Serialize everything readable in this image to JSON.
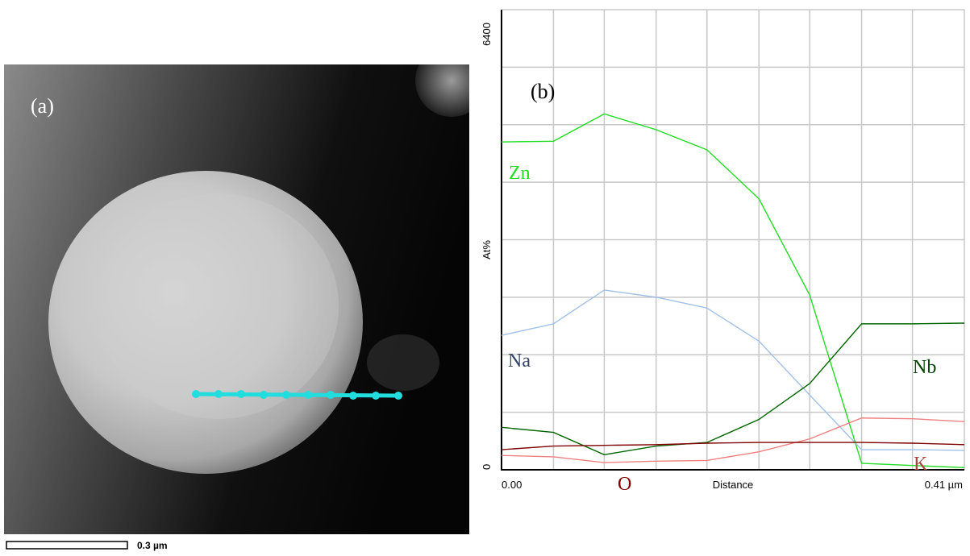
{
  "panel_a": {
    "label": "(a)",
    "scale_bar": "0.3 µm"
  },
  "chart_data": {
    "type": "line",
    "label": "(b)",
    "ylabel": "At%",
    "xlabel": "Distance",
    "x": [
      0,
      0.046,
      0.091,
      0.137,
      0.182,
      0.228,
      0.273,
      0.319,
      0.364,
      0.41
    ],
    "xlim": [
      0,
      0.41
    ],
    "xticks": [
      {
        "value": 0,
        "label": "0.00"
      },
      {
        "value": 0.046,
        "label": null
      },
      {
        "value": 0.091,
        "label": null
      },
      {
        "value": 0.137,
        "label": null
      },
      {
        "value": 0.182,
        "label": null
      },
      {
        "value": 0.228,
        "label": null
      },
      {
        "value": 0.273,
        "label": null
      },
      {
        "value": 0.319,
        "label": null
      },
      {
        "value": 0.364,
        "label": null
      },
      {
        "value": 0.41,
        "label": "0.41 µm"
      }
    ],
    "ylim": [
      0,
      6400
    ],
    "yticks": [
      0,
      {
        "value": 800,
        "label": null
      },
      {
        "value": 1600,
        "label": null
      },
      {
        "value": 2400,
        "label": null
      },
      {
        "value": 3200,
        "label": null
      },
      {
        "value": 4000,
        "label": null
      },
      {
        "value": 4800,
        "label": null
      },
      {
        "value": 5600,
        "label": null
      },
      6400
    ],
    "grid": true,
    "series": [
      {
        "name": "Zn",
        "color": "#22dd22",
        "values": [
          4560,
          4570,
          4950,
          4730,
          4450,
          3770,
          2430,
          90,
          60,
          30
        ]
      },
      {
        "name": "Na",
        "color": "#a0c0e8",
        "values": [
          1870,
          2030,
          2500,
          2400,
          2250,
          1790,
          1040,
          280,
          280,
          270
        ]
      },
      {
        "name": "Nb",
        "color": "#006600",
        "values": [
          590,
          520,
          210,
          330,
          380,
          700,
          1200,
          2030,
          2030,
          2040
        ]
      },
      {
        "name": "K",
        "color": "#f08080",
        "values": [
          200,
          180,
          100,
          120,
          130,
          250,
          430,
          720,
          710,
          670
        ]
      },
      {
        "name": "O",
        "color": "#800000",
        "values": [
          280,
          330,
          340,
          350,
          370,
          380,
          380,
          380,
          370,
          350
        ]
      }
    ]
  }
}
